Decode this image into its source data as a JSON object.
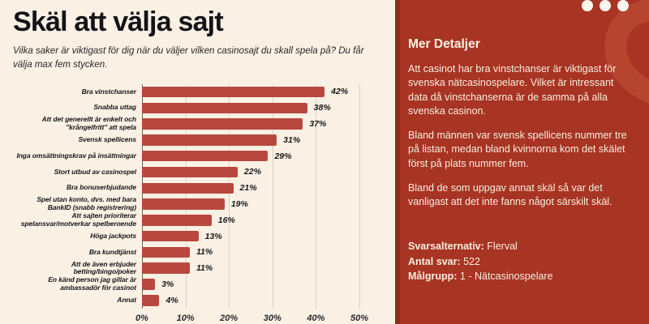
{
  "page": {
    "title": "Skäl att välja sajt",
    "subtitle": "Vilka saker är viktigast för dig när du väljer vilken casinosajt du skall spela på? Du får välja max fem stycken."
  },
  "chart_data": {
    "type": "bar",
    "orientation": "horizontal",
    "categories": [
      "Bra vinstchanser",
      "Snabba uttag",
      "Att det generellt är enkelt och \"krångelfritt\" att spela",
      "Svensk spellicens",
      "Inga omsättningskrav på insättningar",
      "Stort utbud av casinospel",
      "Bra bonuserbjudande",
      "Spel utan konto, dvs. med bara BankID (snabb registrering)",
      "Att sajten prioriterar spelansvar/motverkar spelberoende",
      "Höga jackpots",
      "Bra kundtjänst",
      "Att de även erbjuder betting/bingo/poker",
      "En känd person jag gillar är ambassadör för casinot",
      "Annat"
    ],
    "values": [
      42,
      38,
      37,
      31,
      29,
      22,
      21,
      19,
      16,
      13,
      11,
      11,
      3,
      4
    ],
    "value_suffix": "%",
    "xlim": [
      0,
      50
    ],
    "x_ticks": [
      "0%",
      "10%",
      "20%",
      "30%",
      "40%",
      "50%"
    ],
    "grid": true,
    "legend": "none",
    "bar_color": "#b8483f"
  },
  "details_panel": {
    "heading": "Mer Detaljer",
    "paragraphs": [
      "Att casinot har bra vinstchanser är viktigast för svenska nätcasinospelare. Vilket är intressant data då vinstchanserna är de samma på alla svenska casinon.",
      "Bland männen var svensk spellicens nummer tre på listan, medan bland kvinnorna kom det skälet först på plats nummer fem.",
      "Bland de som uppgav annat skäl så var det vanligast att det inte fanns något särskilt skäl."
    ],
    "meta": [
      {
        "label": "Svarsalternativ:",
        "value": "Flerval"
      },
      {
        "label": "Antal svar:",
        "value": "522"
      },
      {
        "label": "Målgrupp:",
        "value": "1 - Nätcasinospelare"
      }
    ]
  },
  "colors": {
    "left_background": "#faf1e4",
    "bar": "#b8483f",
    "panel_background": "#a83424",
    "panel_edge": "#8c2b1c",
    "panel_accent": "#b5452e",
    "text_dark": "#17161b",
    "text_light": "#f7edde",
    "gridline": "#dad2c2"
  }
}
